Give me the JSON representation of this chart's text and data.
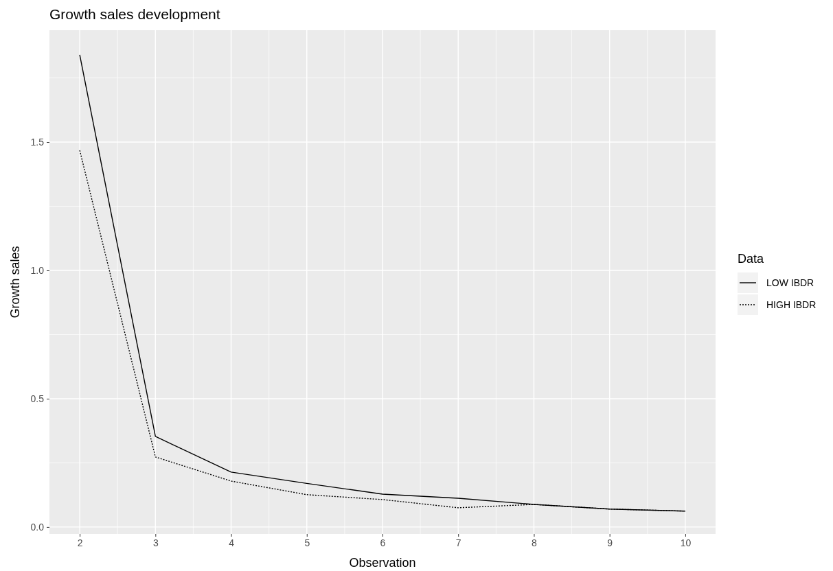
{
  "chart_data": {
    "type": "line",
    "title": "Growth sales development",
    "xlabel": "Observation",
    "ylabel": "Growth sales",
    "legend_title": "Data",
    "x": [
      2,
      3,
      4,
      5,
      6,
      7,
      8,
      9,
      10
    ],
    "series": [
      {
        "name": "LOW IBDR",
        "color": "#000000",
        "line_style": "solid",
        "values": [
          1.84,
          0.353,
          0.214,
          0.17,
          0.128,
          0.112,
          0.088,
          0.07,
          0.062
        ]
      },
      {
        "name": "HIGH IBDR",
        "color": "#000000",
        "line_style": "dotted",
        "values": [
          1.468,
          0.273,
          0.179,
          0.126,
          0.107,
          0.075,
          0.088,
          0.07,
          0.062
        ]
      }
    ],
    "xlim": [
      1.6,
      10.4
    ],
    "xticks": [
      2,
      3,
      4,
      5,
      6,
      7,
      8,
      9,
      10
    ],
    "ylim": [
      -0.027,
      1.936
    ],
    "yticks": [
      {
        "value": 0,
        "label": "0.0"
      },
      {
        "value": 0.5,
        "label": "0.5"
      },
      {
        "value": 1,
        "label": "1.0"
      },
      {
        "value": 1.5,
        "label": "1.5"
      }
    ],
    "grid": true,
    "legend": "right",
    "marker": "none"
  }
}
